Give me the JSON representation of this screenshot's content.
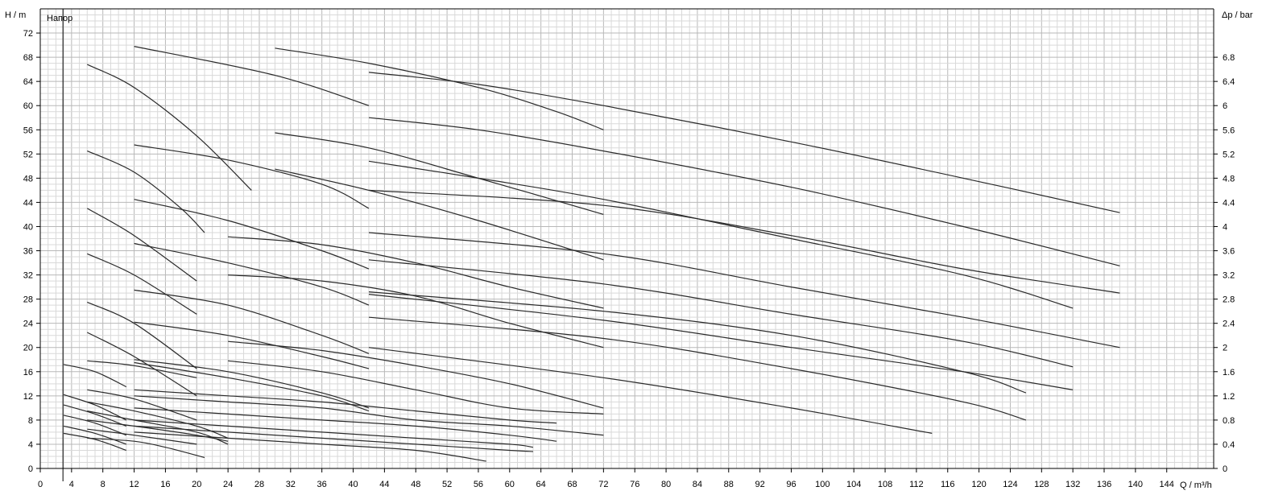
{
  "chart_data": {
    "type": "line",
    "title": "Напор",
    "xlabel": "Q / m³/h",
    "ylabel": "H / m",
    "y2label": "Δp / bar",
    "xlim": [
      0,
      150
    ],
    "ylim": [
      0,
      76
    ],
    "y2lim": [
      0,
      7.6
    ],
    "xticks": [
      0,
      4,
      8,
      12,
      16,
      20,
      24,
      28,
      32,
      36,
      40,
      44,
      48,
      52,
      56,
      60,
      64,
      68,
      72,
      76,
      80,
      84,
      88,
      92,
      96,
      100,
      104,
      108,
      112,
      116,
      120,
      124,
      128,
      132,
      136,
      140,
      144
    ],
    "yticks": [
      0,
      4,
      8,
      12,
      16,
      20,
      24,
      28,
      32,
      36,
      40,
      44,
      48,
      52,
      56,
      60,
      64,
      68,
      72
    ],
    "y2ticks": [
      "0",
      "0.4",
      "0.8",
      "1.2",
      "1.6",
      "2",
      "2.4",
      "2.8",
      "3.2",
      "3.6",
      "4",
      "4.4",
      "4.8",
      "5.2",
      "5.6",
      "6",
      "6.4",
      "6.8"
    ],
    "grid": true,
    "series": [
      {
        "x": [
          12,
          30,
          42
        ],
        "y": [
          69.8,
          65,
          60
        ]
      },
      {
        "x": [
          6,
          12,
          20,
          27
        ],
        "y": [
          66.8,
          63,
          55,
          46
        ]
      },
      {
        "x": [
          30,
          42,
          56,
          66,
          72
        ],
        "y": [
          69.5,
          67,
          63,
          59,
          56
        ]
      },
      {
        "x": [
          42,
          56,
          72,
          96,
          118,
          138
        ],
        "y": [
          65.5,
          63.5,
          60,
          54,
          48,
          42.3
        ]
      },
      {
        "x": [
          30,
          42,
          56,
          72
        ],
        "y": [
          55.5,
          53,
          48,
          42
        ]
      },
      {
        "x": [
          42,
          56,
          72,
          96,
          118,
          138
        ],
        "y": [
          58,
          56,
          52.5,
          46.5,
          40,
          33.5
        ]
      },
      {
        "x": [
          12,
          24,
          36,
          42
        ],
        "y": [
          53.5,
          51,
          47,
          43
        ]
      },
      {
        "x": [
          6,
          12,
          18,
          21
        ],
        "y": [
          52.5,
          49,
          43,
          39
        ]
      },
      {
        "x": [
          42,
          56,
          72,
          96,
          118,
          132
        ],
        "y": [
          50.8,
          48,
          44.5,
          38,
          32,
          26.5
        ]
      },
      {
        "x": [
          30,
          42,
          56,
          72
        ],
        "y": [
          49.5,
          46,
          41,
          34.5
        ]
      },
      {
        "x": [
          42,
          72,
          96,
          118,
          138
        ],
        "y": [
          46,
          43.5,
          38.5,
          33,
          29
        ]
      },
      {
        "x": [
          12,
          24,
          36,
          42
        ],
        "y": [
          44.5,
          41,
          36,
          33
        ]
      },
      {
        "x": [
          6,
          12,
          20
        ],
        "y": [
          43,
          38.5,
          31
        ]
      },
      {
        "x": [
          42,
          72,
          96,
          118,
          138
        ],
        "y": [
          39,
          35.5,
          30,
          25,
          20
        ]
      },
      {
        "x": [
          24,
          36,
          48,
          60,
          72
        ],
        "y": [
          38.3,
          37,
          34,
          30,
          26.5
        ]
      },
      {
        "x": [
          12,
          24,
          36,
          42
        ],
        "y": [
          37.2,
          34,
          30,
          27
        ]
      },
      {
        "x": [
          6,
          12,
          20
        ],
        "y": [
          35.5,
          32,
          25.5
        ]
      },
      {
        "x": [
          42,
          72,
          96,
          118,
          132
        ],
        "y": [
          34.5,
          30.5,
          25.5,
          21,
          16.8
        ]
      },
      {
        "x": [
          24,
          36,
          48,
          60,
          72
        ],
        "y": [
          32,
          31,
          28.5,
          24,
          20
        ]
      },
      {
        "x": [
          12,
          24,
          36,
          42
        ],
        "y": [
          29.5,
          27,
          22,
          19
        ]
      },
      {
        "x": [
          6,
          12,
          20
        ],
        "y": [
          27.5,
          24,
          16.5
        ]
      },
      {
        "x": [
          42,
          72,
          96,
          118,
          126
        ],
        "y": [
          29.2,
          26,
          22,
          16,
          12.5
        ]
      },
      {
        "x": [
          42,
          72,
          96,
          118,
          132
        ],
        "y": [
          28.8,
          24.5,
          20,
          16,
          13
        ]
      },
      {
        "x": [
          12,
          24,
          36,
          42
        ],
        "y": [
          24.2,
          22,
          18.5,
          16.5
        ]
      },
      {
        "x": [
          6,
          12,
          20
        ],
        "y": [
          22.5,
          18.5,
          12
        ]
      },
      {
        "x": [
          42,
          72,
          96,
          118,
          126
        ],
        "y": [
          25,
          21.5,
          16.5,
          11,
          8
        ]
      },
      {
        "x": [
          24,
          36,
          48,
          60,
          72
        ],
        "y": [
          21,
          19.5,
          17,
          14,
          10
        ]
      },
      {
        "x": [
          12,
          24,
          36,
          42
        ],
        "y": [
          18,
          16,
          12.5,
          10
        ]
      },
      {
        "x": [
          6,
          12,
          20
        ],
        "y": [
          17.8,
          17,
          15
        ]
      },
      {
        "x": [
          42,
          72,
          96,
          114
        ],
        "y": [
          20,
          15,
          10,
          5.8
        ]
      },
      {
        "x": [
          24,
          36,
          48,
          60,
          72
        ],
        "y": [
          17.8,
          16,
          13,
          10,
          9
        ]
      },
      {
        "x": [
          3,
          7,
          11
        ],
        "y": [
          17.2,
          16,
          13.5
        ]
      },
      {
        "x": [
          12,
          24,
          36,
          42
        ],
        "y": [
          17.5,
          15,
          12,
          9.5
        ]
      },
      {
        "x": [
          6,
          12,
          20
        ],
        "y": [
          13,
          11.5,
          8
        ]
      },
      {
        "x": [
          12,
          24,
          36,
          48,
          60,
          66
        ],
        "y": [
          13,
          12,
          11,
          9.5,
          8,
          7.5
        ]
      },
      {
        "x": [
          12,
          24,
          36,
          48,
          60,
          72
        ],
        "y": [
          12,
          11,
          10,
          8,
          7,
          5.5
        ]
      },
      {
        "x": [
          3,
          7,
          11
        ],
        "y": [
          12.2,
          10.5,
          8
        ]
      },
      {
        "x": [
          6,
          12,
          20,
          24
        ],
        "y": [
          11,
          9.5,
          7,
          5
        ]
      },
      {
        "x": [
          12,
          24,
          36,
          48,
          60,
          66
        ],
        "y": [
          10,
          9,
          8,
          7,
          5.5,
          4.5
        ]
      },
      {
        "x": [
          3,
          7,
          11
        ],
        "y": [
          10.5,
          9,
          7
        ]
      },
      {
        "x": [
          6,
          12,
          20,
          24
        ],
        "y": [
          9.5,
          8,
          6,
          4
        ]
      },
      {
        "x": [
          12,
          24,
          36,
          48,
          60,
          63
        ],
        "y": [
          8,
          7,
          6,
          5,
          4,
          3.5
        ]
      },
      {
        "x": [
          3,
          7,
          11
        ],
        "y": [
          8.8,
          7.5,
          5.5
        ]
      },
      {
        "x": [
          6,
          12,
          20,
          24
        ],
        "y": [
          8,
          7,
          5.5,
          4.5
        ]
      },
      {
        "x": [
          12,
          24,
          36,
          48,
          60,
          63
        ],
        "y": [
          7,
          6,
          5,
          4,
          3,
          2.8
        ]
      },
      {
        "x": [
          3,
          7,
          11
        ],
        "y": [
          7,
          5.8,
          4
        ]
      },
      {
        "x": [
          6,
          12,
          20
        ],
        "y": [
          6.5,
          5.5,
          4
        ]
      },
      {
        "x": [
          12,
          24,
          36,
          48,
          57
        ],
        "y": [
          6,
          5,
          4,
          3,
          1.2
        ]
      },
      {
        "x": [
          3,
          7,
          11
        ],
        "y": [
          5.8,
          4.8,
          3
        ]
      },
      {
        "x": [
          6,
          12,
          16,
          21
        ],
        "y": [
          5,
          4.5,
          3.5,
          1.8
        ]
      }
    ]
  }
}
